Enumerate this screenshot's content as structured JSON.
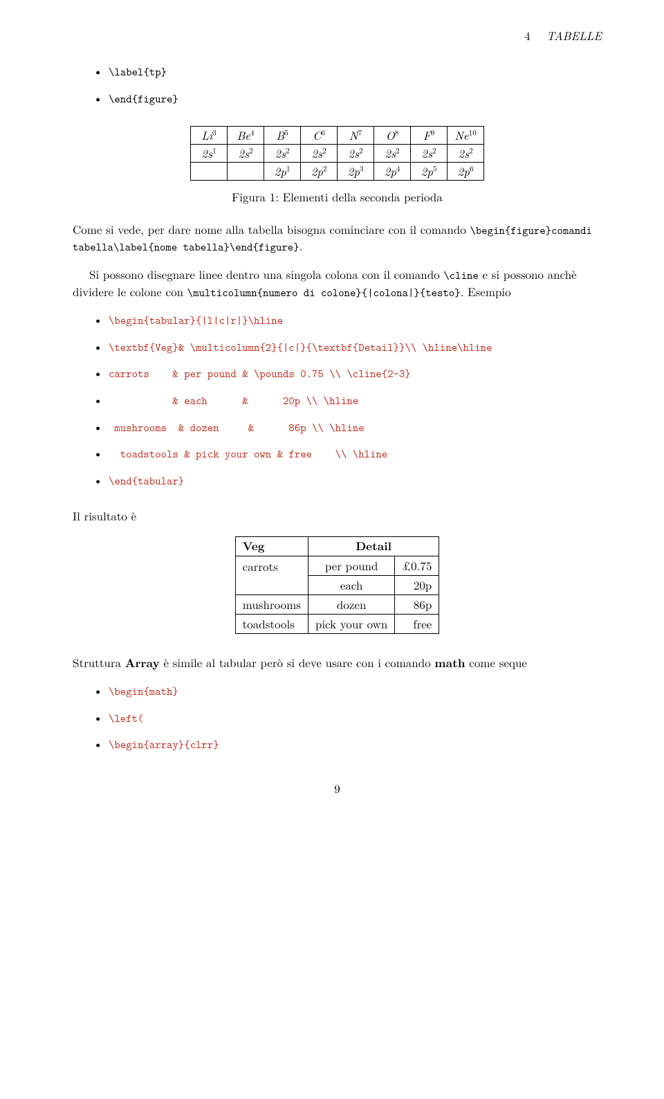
{
  "header": {
    "section_num": "4",
    "section_title": "TABELLE"
  },
  "bullets_top": [
    "\\label{tp}",
    "\\end{figure}"
  ],
  "periodic": {
    "row1": [
      {
        "sym": "Li",
        "sup": "3"
      },
      {
        "sym": "Be",
        "sup": "4"
      },
      {
        "sym": "B",
        "sup": "5"
      },
      {
        "sym": "C",
        "sup": "6"
      },
      {
        "sym": "N",
        "sup": "7"
      },
      {
        "sym": "O",
        "sup": "8"
      },
      {
        "sym": "F",
        "sup": "9"
      },
      {
        "sym": "Ne",
        "sup": "10"
      }
    ],
    "row2": [
      {
        "sym": "2s",
        "sup": "1"
      },
      {
        "sym": "2s",
        "sup": "2"
      },
      {
        "sym": "2s",
        "sup": "2"
      },
      {
        "sym": "2s",
        "sup": "2"
      },
      {
        "sym": "2s",
        "sup": "2"
      },
      {
        "sym": "2s",
        "sup": "2"
      },
      {
        "sym": "2s",
        "sup": "2"
      },
      {
        "sym": "2s",
        "sup": "2"
      }
    ],
    "row3": [
      {
        "sym": "",
        "sup": ""
      },
      {
        "sym": "",
        "sup": ""
      },
      {
        "sym": "2p",
        "sup": "1"
      },
      {
        "sym": "2p",
        "sup": "2"
      },
      {
        "sym": "2p",
        "sup": "3"
      },
      {
        "sym": "2p",
        "sup": "4"
      },
      {
        "sym": "2p",
        "sup": "5"
      },
      {
        "sym": "2p",
        "sup": "6"
      }
    ]
  },
  "caption": "Figura 1: Elementi della seconda perioda",
  "para1_a": "Come si vede, per dare nome alla tabella bisogna cominciare con il comando ",
  "para1_b": "\\begin{figure}comandi tabella\\label{nome tabella}\\end{figure}",
  "para1_c": ".",
  "para2_a": "Si possono disegnare linee dentro una singola colona con il comando ",
  "para2_b": "\\cline",
  "para2_c": " e si possono anchè dividere le colone con ",
  "para2_d": "\\multicolumn{numero di colone}{|colona|}{testo}",
  "para2_e": ". Esempio",
  "code_lines": [
    "\\begin{tabular}{|l|c|r|}\\hline",
    "\\textbf{Veg}& \\multicolumn{2}{|c|}{\\textbf{Detail}}\\\\ \\hline\\hline",
    "carrots    & per pound & \\pounds 0.75 \\\\ \\cline{2-3}",
    "           & each      &      20p \\\\ \\hline",
    " mushrooms  & dozen     &      86p \\\\ \\hline",
    "  toadstools & pick your own & free    \\\\ \\hline",
    "\\end{tabular}"
  ],
  "risultato_label": "Il risultato è",
  "veg_table": {
    "head": {
      "c1": "Veg",
      "c2": "Detail"
    },
    "rows": [
      {
        "c1": "carrots",
        "c2": "per pound",
        "c3": "£0.75"
      },
      {
        "c1": "",
        "c2": "each",
        "c3": "20p"
      },
      {
        "c1": "mushrooms",
        "c2": "dozen",
        "c3": "86p"
      },
      {
        "c1": "toadstools",
        "c2": "pick your own",
        "c3": "free"
      }
    ]
  },
  "array_para_a": "Struttura ",
  "array_para_b": "Array",
  "array_para_c": " è simile al tabular però si deve usare con i comando ",
  "array_para_d": "math",
  "array_para_e": " come seque",
  "code_lines2": [
    "\\begin{math}",
    "\\left(",
    "\\begin{array}{clrr}"
  ],
  "page_number": "9"
}
